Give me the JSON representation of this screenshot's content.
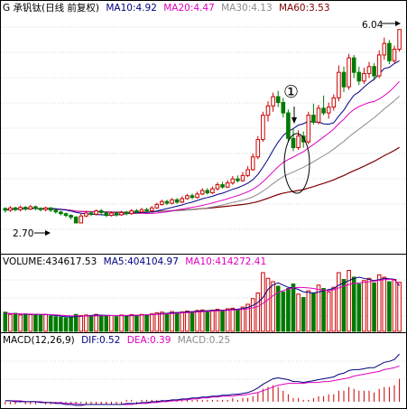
{
  "colors": {
    "background": "#ffffff",
    "frame": "#000000",
    "grid": "#b0b0b0",
    "up": "#cc0000",
    "down": "#007a00",
    "ma10": "#000080",
    "ma20": "#e000c0",
    "ma30": "#8c8c8c",
    "ma60": "#800000",
    "text": "#000000"
  },
  "price_panel": {
    "header": [
      {
        "text": "G 承钒钛(日线 前复权)",
        "color": "#000000"
      },
      {
        "text": "MA10:4.92",
        "color": "#000080"
      },
      {
        "text": "MA20:4.47",
        "color": "#e000c0"
      },
      {
        "text": "MA30:4.13",
        "color": "#8c8c8c"
      },
      {
        "text": "MA60:3.53",
        "color": "#800000"
      }
    ],
    "high_label": "6.04",
    "low_label": "2.70",
    "marker_label": "①",
    "ylim": [
      2.2,
      6.3
    ]
  },
  "volume_panel": {
    "header": [
      {
        "text": "VOLUME:434617.53",
        "color": "#000000"
      },
      {
        "text": "MA5:404104.97",
        "color": "#000080"
      },
      {
        "text": "MA10:414272.41",
        "color": "#e000c0"
      }
    ],
    "ylim": [
      0,
      560000
    ]
  },
  "macd_panel": {
    "header": [
      {
        "text": "MACD(12,26,9)",
        "color": "#000000"
      },
      {
        "text": "DIF:0.52",
        "color": "#000080"
      },
      {
        "text": "DEA:0.39",
        "color": "#e000c0"
      },
      {
        "text": "MACD:0.25",
        "color": "#8c8c8c"
      }
    ],
    "ylim": [
      -0.06,
      0.6
    ]
  },
  "chart_data": {
    "type": "candlestick",
    "title": "G 承钒钛(日线 前复权)",
    "candles": [
      [
        2.95,
        2.92,
        2.97,
        2.88
      ],
      [
        2.92,
        2.96,
        2.99,
        2.89
      ],
      [
        2.96,
        2.93,
        2.98,
        2.9
      ],
      [
        2.93,
        2.97,
        3.0,
        2.9
      ],
      [
        2.97,
        2.94,
        2.99,
        2.91
      ],
      [
        2.94,
        2.98,
        3.01,
        2.92
      ],
      [
        2.98,
        2.95,
        3.0,
        2.92
      ],
      [
        2.95,
        2.93,
        2.97,
        2.9
      ],
      [
        2.93,
        2.96,
        2.98,
        2.9
      ],
      [
        2.96,
        2.92,
        2.97,
        2.89
      ],
      [
        2.92,
        2.89,
        2.94,
        2.86
      ],
      [
        2.89,
        2.86,
        2.91,
        2.83
      ],
      [
        2.86,
        2.83,
        2.88,
        2.8
      ],
      [
        2.83,
        2.8,
        2.85,
        2.76
      ],
      [
        2.8,
        2.7,
        2.82,
        2.7
      ],
      [
        2.7,
        2.82,
        2.86,
        2.7
      ],
      [
        2.82,
        2.87,
        2.91,
        2.8
      ],
      [
        2.87,
        2.85,
        2.9,
        2.82
      ],
      [
        2.85,
        2.91,
        2.93,
        2.83
      ],
      [
        2.91,
        2.88,
        2.94,
        2.85
      ],
      [
        2.88,
        2.83,
        2.9,
        2.8
      ],
      [
        2.83,
        2.87,
        2.9,
        2.81
      ],
      [
        2.87,
        2.84,
        2.89,
        2.81
      ],
      [
        2.84,
        2.88,
        2.91,
        2.82
      ],
      [
        2.88,
        2.86,
        2.91,
        2.83
      ],
      [
        2.86,
        2.91,
        2.94,
        2.84
      ],
      [
        2.91,
        2.89,
        2.94,
        2.86
      ],
      [
        2.89,
        2.93,
        2.96,
        2.87
      ],
      [
        2.93,
        2.91,
        2.96,
        2.88
      ],
      [
        2.91,
        2.96,
        2.99,
        2.89
      ],
      [
        2.96,
        3.02,
        3.05,
        2.94
      ],
      [
        3.02,
        3.07,
        3.1,
        3.0
      ],
      [
        3.07,
        3.04,
        3.1,
        3.01
      ],
      [
        3.04,
        3.1,
        3.13,
        3.02
      ],
      [
        3.1,
        3.06,
        3.13,
        3.03
      ],
      [
        3.06,
        3.12,
        3.16,
        3.04
      ],
      [
        3.12,
        3.17,
        3.2,
        3.1
      ],
      [
        3.17,
        3.14,
        3.21,
        3.11
      ],
      [
        3.14,
        3.2,
        3.24,
        3.12
      ],
      [
        3.2,
        3.26,
        3.3,
        3.18
      ],
      [
        3.26,
        3.22,
        3.3,
        3.19
      ],
      [
        3.22,
        3.29,
        3.33,
        3.2
      ],
      [
        3.29,
        3.36,
        3.4,
        3.26
      ],
      [
        3.36,
        3.32,
        3.41,
        3.29
      ],
      [
        3.32,
        3.39,
        3.44,
        3.3
      ],
      [
        3.39,
        3.46,
        3.51,
        3.36
      ],
      [
        3.46,
        3.43,
        3.52,
        3.4
      ],
      [
        3.43,
        3.52,
        3.58,
        3.41
      ],
      [
        3.52,
        3.62,
        3.68,
        3.49
      ],
      [
        3.62,
        3.84,
        3.9,
        3.6
      ],
      [
        3.84,
        4.14,
        4.2,
        3.8
      ],
      [
        4.14,
        4.56,
        4.62,
        4.1
      ],
      [
        4.56,
        4.72,
        4.8,
        4.45
      ],
      [
        4.72,
        4.88,
        4.95,
        4.62
      ],
      [
        4.88,
        4.78,
        4.98,
        4.7
      ],
      [
        4.78,
        4.6,
        4.86,
        4.52
      ],
      [
        4.6,
        4.16,
        4.66,
        4.1
      ],
      [
        4.16,
        4.0,
        4.32,
        3.94
      ],
      [
        4.0,
        4.2,
        4.3,
        3.96
      ],
      [
        4.2,
        4.1,
        4.28,
        4.0
      ],
      [
        4.1,
        4.56,
        4.62,
        4.06
      ],
      [
        4.56,
        4.44,
        4.76,
        4.4
      ],
      [
        4.44,
        4.68,
        4.74,
        4.4
      ],
      [
        4.68,
        4.6,
        4.9,
        4.56
      ],
      [
        4.6,
        4.7,
        4.78,
        4.5
      ],
      [
        4.7,
        4.86,
        4.92,
        4.64
      ],
      [
        4.86,
        5.3,
        5.42,
        4.8
      ],
      [
        5.3,
        5.05,
        5.4,
        4.96
      ],
      [
        5.05,
        5.55,
        5.62,
        5.0
      ],
      [
        5.55,
        5.3,
        5.6,
        5.2
      ],
      [
        5.3,
        5.15,
        5.4,
        5.08
      ],
      [
        5.15,
        5.28,
        5.38,
        5.1
      ],
      [
        5.28,
        5.4,
        5.48,
        5.2
      ],
      [
        5.4,
        5.24,
        5.46,
        5.16
      ],
      [
        5.24,
        5.6,
        5.68,
        5.2
      ],
      [
        5.6,
        5.8,
        5.9,
        5.52
      ],
      [
        5.8,
        5.5,
        5.86,
        5.44
      ],
      [
        5.5,
        5.7,
        5.76,
        5.46
      ],
      [
        5.7,
        6.04,
        6.04,
        5.66
      ]
    ],
    "volume": [
      170000,
      150000,
      160000,
      145000,
      155000,
      148000,
      152000,
      140000,
      150000,
      135000,
      130000,
      125000,
      120000,
      128000,
      150000,
      140000,
      145000,
      138000,
      150000,
      142000,
      135000,
      140000,
      130000,
      145000,
      138000,
      148000,
      142000,
      150000,
      145000,
      155000,
      165000,
      170000,
      160000,
      175000,
      165000,
      172000,
      180000,
      170000,
      185000,
      190000,
      178000,
      188000,
      195000,
      185000,
      200000,
      205000,
      195000,
      215000,
      240000,
      290000,
      340000,
      520000,
      470000,
      440000,
      400000,
      350000,
      380000,
      420000,
      330000,
      300000,
      360000,
      340000,
      410000,
      380000,
      350000,
      390000,
      520000,
      460000,
      540000,
      480000,
      420000,
      450000,
      470000,
      430000,
      500000,
      480000,
      440000,
      460000,
      434617.53
    ],
    "volume_ma5": [
      160000,
      158000,
      156000,
      153000,
      152000,
      150000,
      151000,
      148000,
      149000,
      145000,
      140000,
      135000,
      130000,
      128000,
      131000,
      133000,
      137000,
      141000,
      145000,
      143000,
      142000,
      141000,
      139000,
      140000,
      138000,
      139000,
      140000,
      145000,
      146000,
      147000,
      152000,
      158000,
      160000,
      164000,
      167000,
      168000,
      172000,
      175000,
      177000,
      181000,
      183000,
      185000,
      187000,
      188000,
      190000,
      195000,
      197000,
      202000,
      212000,
      230000,
      256000,
      300000,
      372000,
      412000,
      430000,
      410000,
      390000,
      385000,
      372000,
      350000,
      345000,
      340000,
      348000,
      360000,
      370000,
      380000,
      410000,
      430000,
      450000,
      470000,
      480000,
      470000,
      460000,
      450000,
      458000,
      470000,
      466000,
      462000,
      404104.97
    ],
    "volume_ma10": [
      158000,
      157000,
      156000,
      155000,
      154000,
      153000,
      152000,
      151000,
      150000,
      148000,
      146000,
      143000,
      140000,
      138000,
      137000,
      136000,
      136000,
      136000,
      137000,
      138000,
      139000,
      140000,
      140000,
      141000,
      141000,
      142000,
      143000,
      145000,
      146000,
      148000,
      150000,
      153000,
      155000,
      158000,
      160000,
      163000,
      166000,
      168000,
      171000,
      174000,
      177000,
      179000,
      181000,
      184000,
      186000,
      189000,
      192000,
      195000,
      200000,
      208000,
      220000,
      248000,
      282000,
      316000,
      345000,
      362000,
      375000,
      385000,
      390000,
      388000,
      385000,
      380000,
      372000,
      366000,
      360000,
      368000,
      385000,
      400000,
      415000,
      425000,
      430000,
      435000,
      440000,
      445000,
      452000,
      458000,
      462000,
      455000,
      414272.41
    ],
    "dif": [
      0.01,
      0.01,
      0.0,
      0.0,
      0.0,
      0.0,
      0.0,
      -0.01,
      -0.01,
      -0.01,
      -0.02,
      -0.02,
      -0.03,
      -0.03,
      -0.04,
      -0.04,
      -0.03,
      -0.03,
      -0.03,
      -0.03,
      -0.03,
      -0.03,
      -0.03,
      -0.03,
      -0.02,
      -0.02,
      -0.02,
      -0.01,
      -0.01,
      0.0,
      0.0,
      0.01,
      0.01,
      0.02,
      0.02,
      0.03,
      0.03,
      0.04,
      0.04,
      0.05,
      0.05,
      0.06,
      0.06,
      0.07,
      0.07,
      0.08,
      0.08,
      0.09,
      0.1,
      0.12,
      0.15,
      0.19,
      0.22,
      0.25,
      0.26,
      0.25,
      0.24,
      0.22,
      0.22,
      0.21,
      0.22,
      0.23,
      0.24,
      0.25,
      0.26,
      0.27,
      0.3,
      0.31,
      0.34,
      0.35,
      0.35,
      0.36,
      0.37,
      0.37,
      0.4,
      0.43,
      0.44,
      0.46,
      0.52
    ],
    "dea": [
      0.01,
      0.01,
      0.01,
      0.01,
      0.0,
      0.0,
      0.0,
      0.0,
      -0.01,
      -0.01,
      -0.01,
      -0.01,
      -0.02,
      -0.02,
      -0.02,
      -0.03,
      -0.03,
      -0.03,
      -0.03,
      -0.03,
      -0.03,
      -0.03,
      -0.03,
      -0.03,
      -0.03,
      -0.03,
      -0.02,
      -0.02,
      -0.02,
      -0.01,
      -0.01,
      0.0,
      0.0,
      0.01,
      0.01,
      0.02,
      0.02,
      0.03,
      0.03,
      0.04,
      0.04,
      0.05,
      0.05,
      0.06,
      0.06,
      0.06,
      0.07,
      0.07,
      0.08,
      0.09,
      0.1,
      0.12,
      0.14,
      0.16,
      0.18,
      0.19,
      0.2,
      0.2,
      0.2,
      0.2,
      0.21,
      0.21,
      0.21,
      0.22,
      0.22,
      0.23,
      0.24,
      0.25,
      0.26,
      0.28,
      0.29,
      0.3,
      0.31,
      0.32,
      0.33,
      0.35,
      0.36,
      0.37,
      0.39
    ],
    "macd": [
      0.0,
      0.0,
      0.0,
      -0.01,
      0.0,
      0.0,
      0.0,
      -0.01,
      0.0,
      0.0,
      -0.02,
      -0.02,
      -0.02,
      -0.02,
      -0.04,
      -0.02,
      0.0,
      0.0,
      0.0,
      0.0,
      0.0,
      0.0,
      0.0,
      0.0,
      0.02,
      0.02,
      0.0,
      0.02,
      0.02,
      0.02,
      0.02,
      0.02,
      0.02,
      0.02,
      0.02,
      0.02,
      0.02,
      0.02,
      0.02,
      0.02,
      0.02,
      0.02,
      0.02,
      0.02,
      0.02,
      0.04,
      0.02,
      0.04,
      0.04,
      0.06,
      0.1,
      0.14,
      0.16,
      0.18,
      0.16,
      0.12,
      0.08,
      0.04,
      0.04,
      0.02,
      0.02,
      0.04,
      0.06,
      0.06,
      0.08,
      0.08,
      0.12,
      0.12,
      0.16,
      0.14,
      0.12,
      0.12,
      0.12,
      0.1,
      0.14,
      0.16,
      0.16,
      0.18,
      0.25
    ]
  }
}
